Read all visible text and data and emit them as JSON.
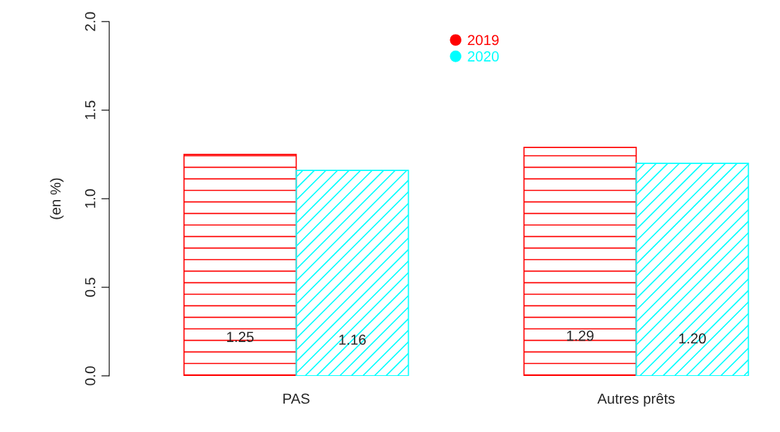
{
  "chart_data": {
    "type": "bar",
    "categories": [
      "PAS",
      "Autres prêts"
    ],
    "ylabel": "(en %)",
    "series": [
      {
        "name": "2019",
        "color": "#ff0000",
        "values": [
          1.25,
          1.29
        ],
        "value_labels": [
          "1.25",
          "1.29"
        ]
      },
      {
        "name": "2020",
        "color": "#00ffff",
        "values": [
          1.16,
          1.2
        ],
        "value_labels": [
          "1.16",
          "1.20"
        ]
      }
    ],
    "ylim": [
      0,
      2
    ],
    "yticks": [
      {
        "value": 0,
        "label": "0.0"
      },
      {
        "value": 0.5,
        "label": "0.5"
      },
      {
        "value": 1,
        "label": "1.0"
      },
      {
        "value": 1.5,
        "label": "1.5"
      },
      {
        "value": 2,
        "label": "2.0"
      }
    ],
    "legend": "top",
    "marker": "circle",
    "grid": false
  }
}
